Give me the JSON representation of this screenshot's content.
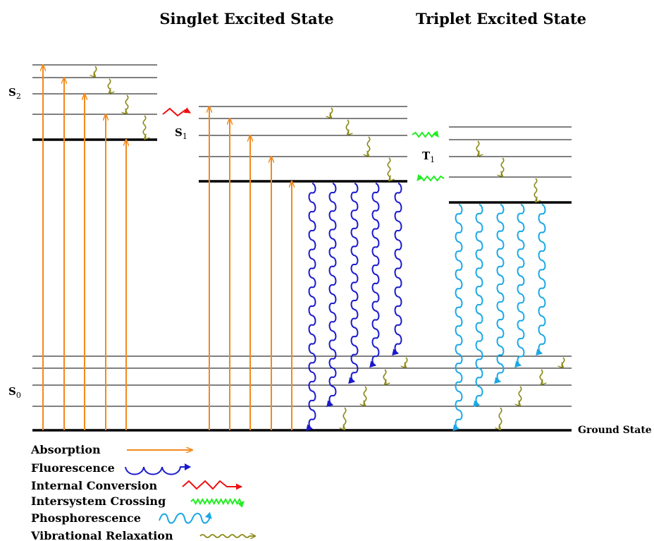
{
  "titles": {
    "singlet": "Singlet Excited State",
    "triplet": "Triplet Excited State"
  },
  "states": {
    "s2": {
      "letter": "S",
      "sub": "2"
    },
    "s1": {
      "letter": "S",
      "sub": "1"
    },
    "t1": {
      "letter": "T",
      "sub": "1"
    },
    "s0": {
      "letter": "S",
      "sub": "0"
    }
  },
  "ground_state": "Ground State",
  "legend": [
    {
      "key": "absorption",
      "label": "Absorption",
      "color": "#f28a1c"
    },
    {
      "key": "fluorescence",
      "label": "Fluorescence",
      "color": "#1a1acc"
    },
    {
      "key": "internal-conversion",
      "label": "Internal Conversion",
      "color": "#ee1111"
    },
    {
      "key": "intersystem-crossing",
      "label": "Intersystem Crossing",
      "color": "#22ee22"
    },
    {
      "key": "phosphorescence",
      "label": "Phosphorescence",
      "color": "#1aa8e6"
    },
    {
      "key": "vibrational-relaxation",
      "label": "Vibrational Relaxation",
      "color": "#8c8a1a"
    }
  ]
}
